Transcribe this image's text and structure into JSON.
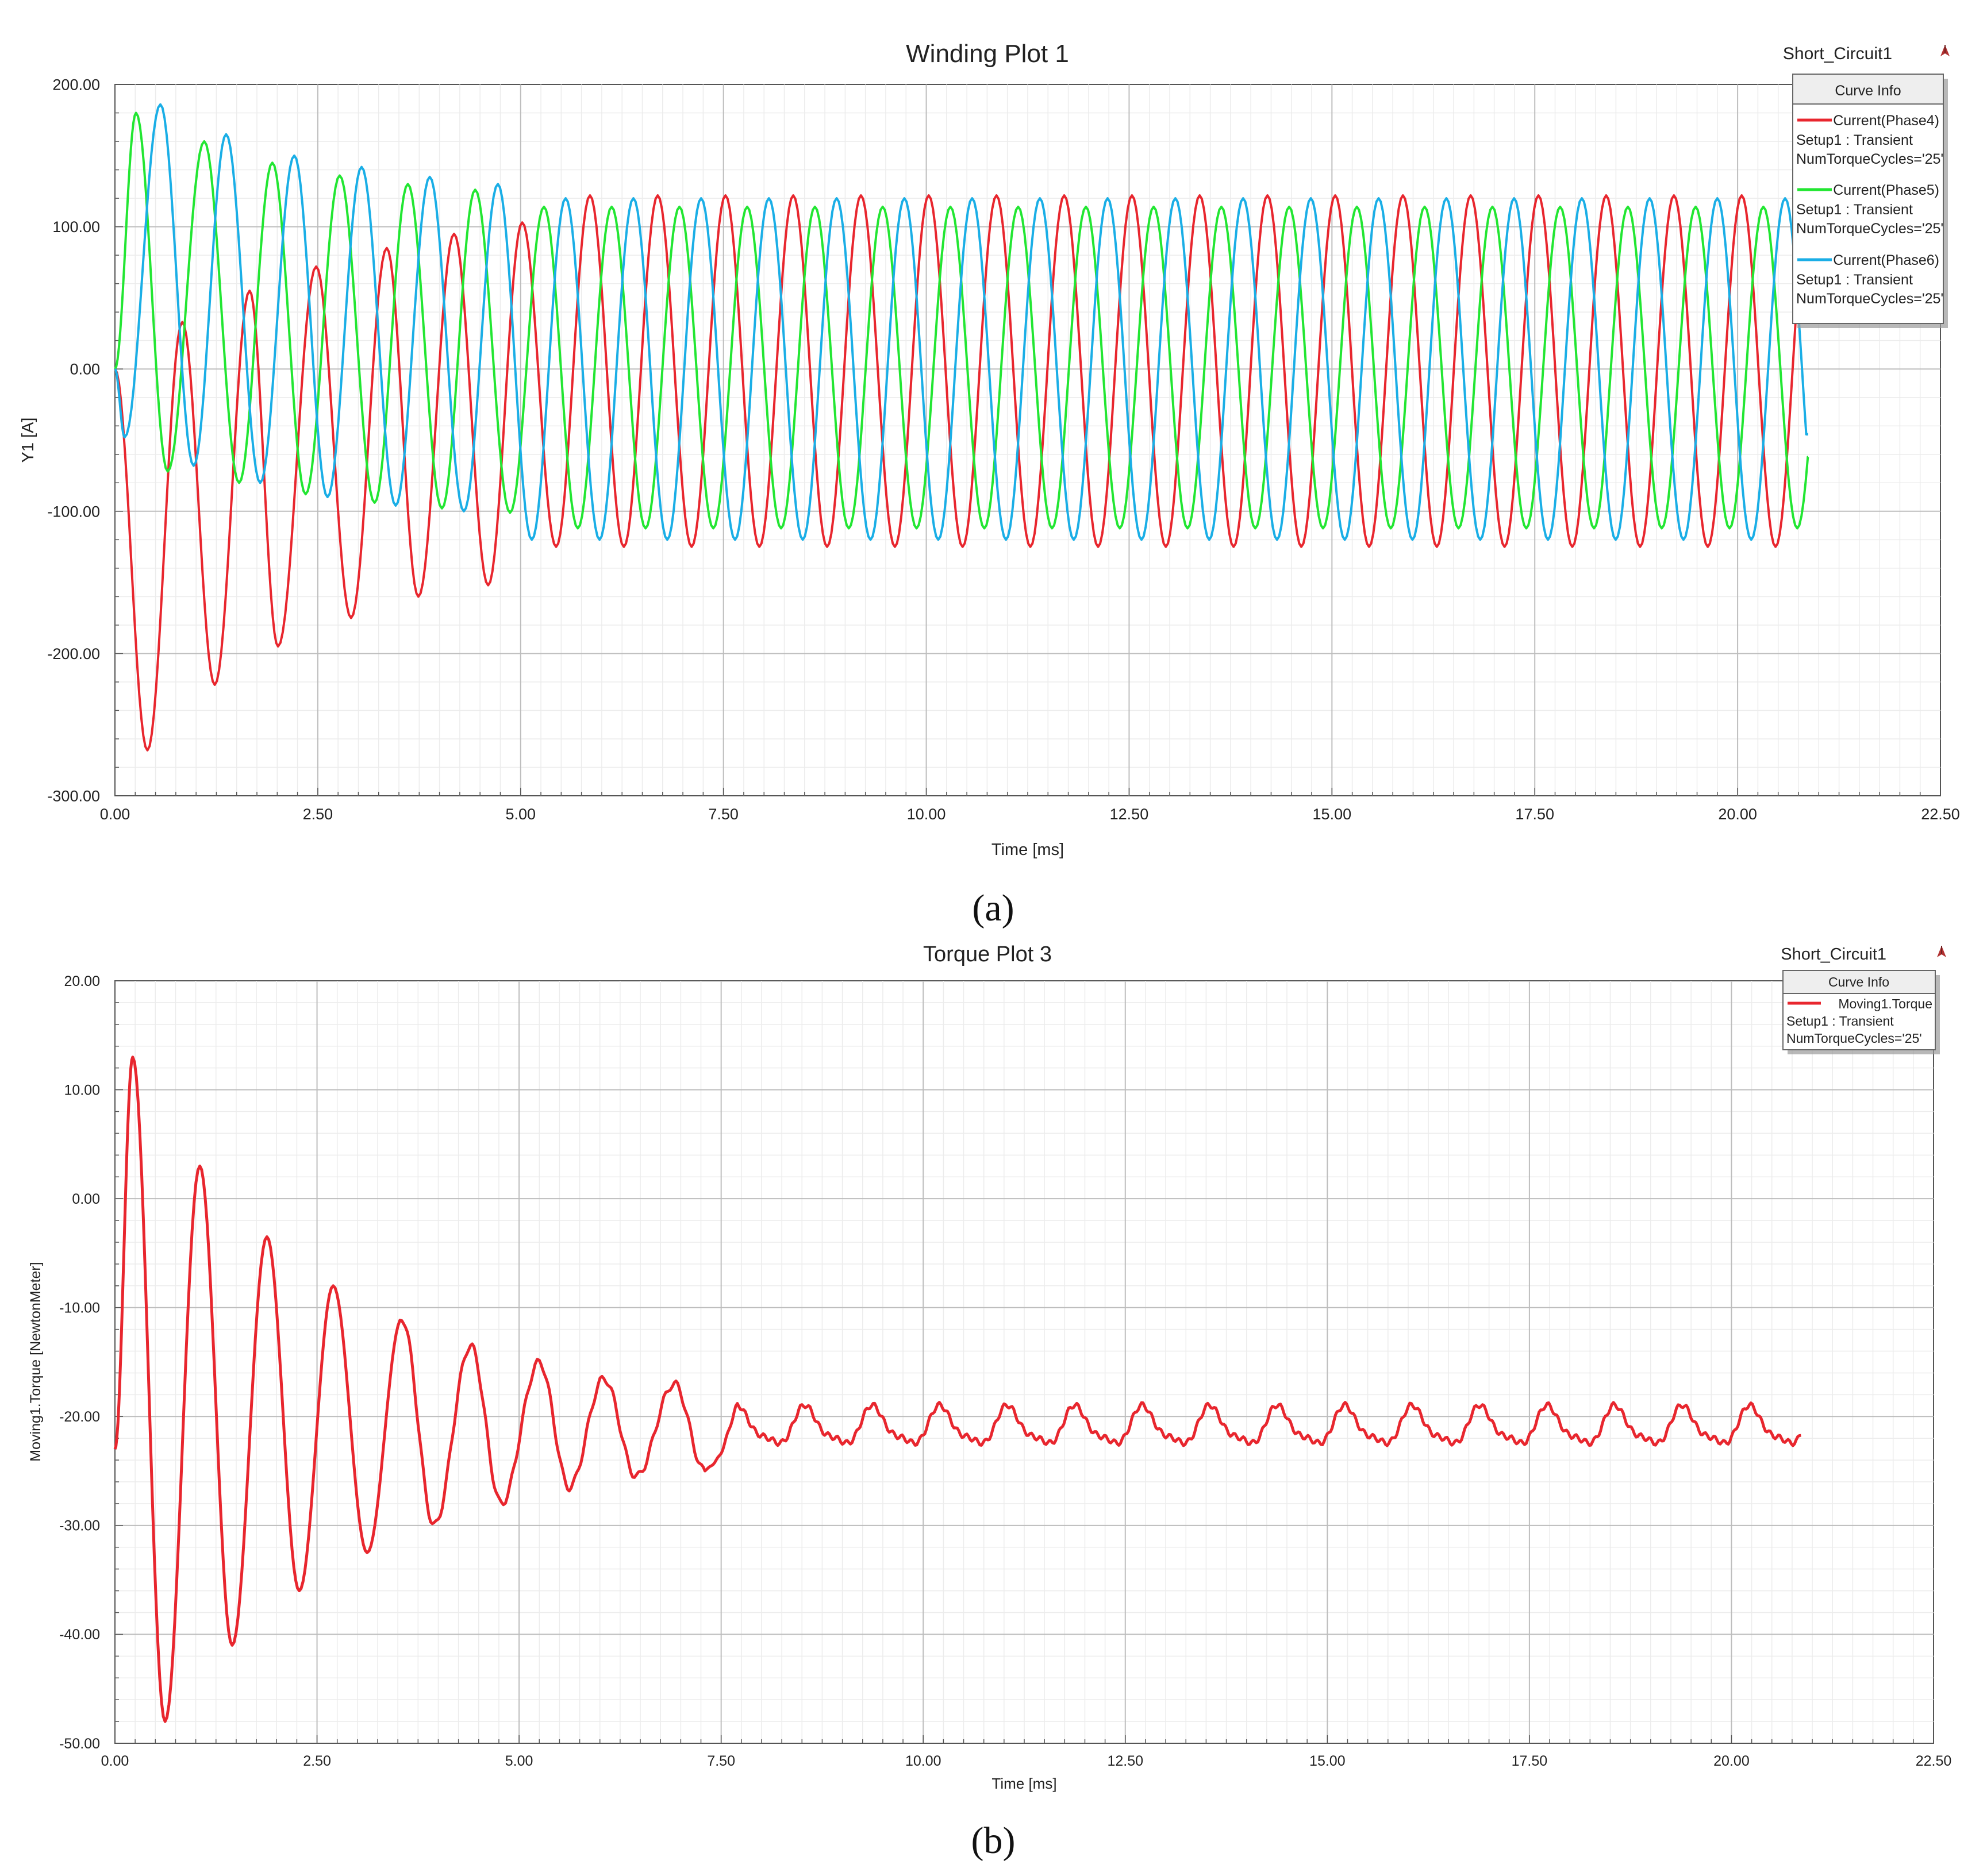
{
  "chart_data": [
    {
      "type": "line",
      "title": "Winding Plot 1",
      "corner_label": "Short_Circuit1",
      "xlabel": "Time [ms]",
      "ylabel": "Y1 [A]",
      "xlim": [
        0,
        22.5
      ],
      "ylim": [
        -300,
        200
      ],
      "x_ticks": [
        "0.00",
        "2.50",
        "5.00",
        "7.50",
        "10.00",
        "12.50",
        "15.00",
        "17.50",
        "20.00",
        "22.50"
      ],
      "y_ticks": [
        "200.00",
        "100.00",
        "0.00",
        "-100.00",
        "-200.00",
        "-300.00"
      ],
      "grid": true,
      "legend": {
        "title": "Curve Info",
        "placement": "top-right",
        "entries": [
          {
            "name": "Current(Phase4)",
            "line2": "Setup1 : Transient",
            "line3": "NumTorqueCycles='25'",
            "color": "#e8262e"
          },
          {
            "name": "Current(Phase5)",
            "line2": "Setup1 : Transient",
            "line3": "NumTorqueCycles='25'",
            "color": "#22e632"
          },
          {
            "name": "Current(Phase6)",
            "line2": "Setup1 : Transient",
            "line3": "NumTorqueCycles='25'",
            "color": "#1aaee6"
          }
        ]
      },
      "series": [
        {
          "name": "Current(Phase4)",
          "color": "#e8262e",
          "peaks_ms": [
            0.4,
            0.83,
            1.23,
            1.66,
            2.01,
            2.48,
            2.91,
            3.35,
            3.74,
            4.18,
            4.6,
            5.02
          ],
          "peak_values": [
            -268,
            33,
            -222,
            55,
            -195,
            72,
            -175,
            85,
            -160,
            95,
            -152,
            103
          ],
          "steady_max": 122,
          "steady_min": -125
        },
        {
          "name": "Current(Phase5)",
          "color": "#22e632",
          "peaks_ms": [
            0.26,
            0.65,
            1.1,
            1.53,
            1.94,
            2.35,
            2.77,
            3.2,
            3.61,
            4.03,
            4.44,
            4.87
          ],
          "peak_values": [
            180,
            -72,
            160,
            -80,
            145,
            -88,
            136,
            -94,
            130,
            -98,
            126,
            -101
          ],
          "steady_max": 114,
          "steady_min": -112
        },
        {
          "name": "Current(Phase6)",
          "color": "#1aaee6",
          "peaks_ms": [
            0.12,
            0.56,
            0.97,
            1.37,
            1.79,
            2.21,
            2.62,
            3.04,
            3.46,
            3.88,
            4.3,
            4.72
          ],
          "peak_values": [
            -48,
            186,
            -68,
            165,
            -80,
            150,
            -90,
            142,
            -96,
            135,
            -100,
            130
          ],
          "steady_max": 120,
          "steady_min": -120
        }
      ],
      "x_end_ms": 20.87,
      "period_ms": 0.835,
      "caption": "(a)"
    },
    {
      "type": "line",
      "title": "Torque Plot 3",
      "corner_label": "Short_Circuit1",
      "xlabel": "Time [ms]",
      "ylabel": "Moving1.Torque [NewtonMeter]",
      "xlim": [
        0,
        22.5
      ],
      "ylim": [
        -50,
        20
      ],
      "x_ticks": [
        "0.00",
        "2.50",
        "5.00",
        "7.50",
        "10.00",
        "12.50",
        "15.00",
        "17.50",
        "20.00",
        "22.50"
      ],
      "y_ticks": [
        "20.00",
        "10.00",
        "0.00",
        "-10.00",
        "-20.00",
        "-30.00",
        "-40.00",
        "-50.00"
      ],
      "grid": true,
      "legend": {
        "title": "Curve Info",
        "placement": "top-right",
        "entries": [
          {
            "name": "Moving1.Torque",
            "line2": "Setup1 : Transient",
            "line3": "NumTorqueCycles='25'",
            "color": "#e8262e"
          }
        ]
      },
      "series": [
        {
          "name": "Moving1.Torque",
          "color": "#e8262e",
          "peaks_ms": [
            0.22,
            0.62,
            1.05,
            1.45,
            1.88,
            2.28,
            2.7,
            3.12,
            3.55,
            3.95,
            4.4,
            4.78,
            5.25,
            5.62,
            6.05,
            6.45,
            6.92,
            7.3
          ],
          "peak_values": [
            13,
            -48,
            3,
            -41,
            -3.5,
            -36,
            -8,
            -32.5,
            -11,
            -30,
            -13.5,
            -28,
            -15,
            -26.5,
            -16.5,
            -25.5,
            -17,
            -25
          ],
          "steady_center": -21,
          "steady_amplitude": 1.6
        }
      ],
      "x_end_ms": 20.87,
      "period_ms": 0.835,
      "caption": "(b)"
    }
  ]
}
